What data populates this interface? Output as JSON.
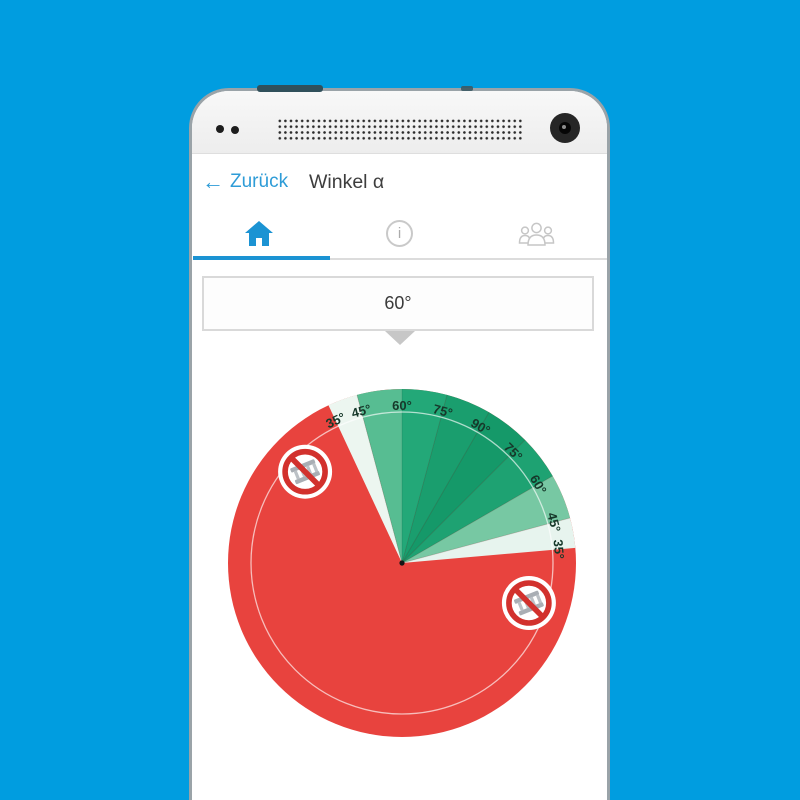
{
  "colors": {
    "background_blue": "#009de0",
    "accent_blue": "#1b93d3",
    "back_link_blue": "#2e9cd7",
    "pie_red": "#e8433e",
    "prohibition_red": "#d2312d"
  },
  "header": {
    "back_icon": "←",
    "back_label": "Zurück",
    "title": "Winkel α"
  },
  "tabs": {
    "items": [
      {
        "id": "home",
        "icon": "home-icon",
        "active": true
      },
      {
        "id": "info",
        "icon": "info-icon",
        "glyph": "i",
        "active": false
      },
      {
        "id": "participants",
        "icon": "people-icon",
        "active": false
      }
    ]
  },
  "selector": {
    "value": "60°"
  },
  "chart_data": {
    "type": "pie",
    "title": "",
    "unit": "°",
    "selected_value": "60°",
    "base_color": "#e8433e",
    "wedges": [
      {
        "from_deg": 115,
        "to_deg": 105,
        "color": "#ecf6f0",
        "zone": "35°-45°"
      },
      {
        "from_deg": 105,
        "to_deg": 90,
        "color": "#57bd92",
        "zone": "45°-60°"
      },
      {
        "from_deg": 90,
        "to_deg": 75,
        "color": "#23a878",
        "zone": "60°-75°"
      },
      {
        "from_deg": 75,
        "to_deg": 60,
        "color": "#1a9e6e",
        "zone": "75°-90°"
      },
      {
        "from_deg": 60,
        "to_deg": 45,
        "color": "#159969",
        "zone": "90°-75°"
      },
      {
        "from_deg": 45,
        "to_deg": 30,
        "color": "#1ea272",
        "zone": "75°-60°"
      },
      {
        "from_deg": 30,
        "to_deg": 15,
        "color": "#77c8a3",
        "zone": "60°-45°"
      },
      {
        "from_deg": 15,
        "to_deg": 5,
        "color": "#e7f4ee",
        "zone": "45°-35°"
      }
    ],
    "boundary_labels": [
      {
        "text": "35°",
        "angle_deg": 115
      },
      {
        "text": "45°",
        "angle_deg": 105
      },
      {
        "text": "60°",
        "angle_deg": 90
      },
      {
        "text": "75°",
        "angle_deg": 75
      },
      {
        "text": "90°",
        "angle_deg": 60
      },
      {
        "text": "75°",
        "angle_deg": 45
      },
      {
        "text": "60°",
        "angle_deg": 30
      },
      {
        "text": "45°",
        "angle_deg": 15
      },
      {
        "text": "35°",
        "angle_deg": 5
      }
    ],
    "separator_angles_deg": [
      105,
      90,
      75,
      60,
      45,
      30,
      15
    ],
    "ring_radius_ratio": 0.868,
    "label_radius_ratio": 0.905,
    "label_color": "#16382a",
    "center_dot_color": "#141414",
    "prohibition_color": "#d2312d",
    "prohibition_icons": [
      {
        "symbol": "no-ladder",
        "angle_deg": 136.7,
        "radius_ratio": 0.765
      },
      {
        "symbol": "no-ladder",
        "angle_deg": -17.5,
        "radius_ratio": 0.765
      }
    ]
  }
}
